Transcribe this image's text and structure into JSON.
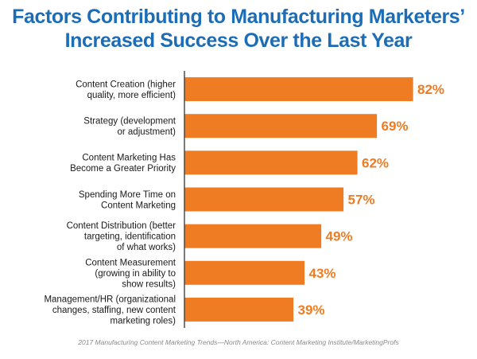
{
  "colors": {
    "title": "#1c6db5",
    "bar": "#ef7c22",
    "axis": "#222222",
    "label": "#1a1a1a",
    "source": "#8a8a8a"
  },
  "chart_data": {
    "type": "bar",
    "orientation": "horizontal",
    "title_lines": [
      "Factors Contributing to Manufacturing Marketers’",
      "Increased Success Over the Last Year"
    ],
    "categories": [
      [
        "Content Creation (higher",
        "quality, more efficient)"
      ],
      [
        "Strategy (development",
        "or adjustment)"
      ],
      [
        "Content Marketing Has",
        "Become a Greater Priority"
      ],
      [
        "Spending More Time on",
        "Content Marketing"
      ],
      [
        "Content Distribution (better",
        "targeting, identification",
        "of what works)"
      ],
      [
        "Content Measurement",
        "(growing in ability to",
        "show results)"
      ],
      [
        "Management/HR (organizational",
        "changes, staffing, new content",
        "marketing roles)"
      ]
    ],
    "values": [
      82,
      69,
      62,
      57,
      49,
      43,
      39
    ],
    "value_labels": [
      "82%",
      "69%",
      "62%",
      "57%",
      "49%",
      "43%",
      "39%"
    ],
    "xlim": [
      0,
      100
    ],
    "unit": "%",
    "source": "2017 Manufacturing Content Marketing Trends—North America: Content Marketing Institute/MarketingProfs"
  }
}
